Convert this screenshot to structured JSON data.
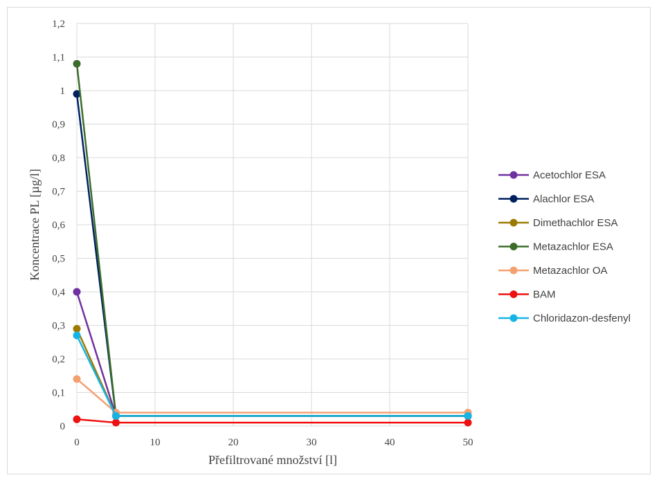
{
  "chart_data": {
    "type": "line",
    "title": "",
    "xlabel": "Přefiltrované množství [l]",
    "ylabel": "Koncentrace PL [µg/l]",
    "xlim": [
      0,
      50
    ],
    "ylim": [
      0,
      1.2
    ],
    "x_ticks": [
      "0",
      "10",
      "20",
      "30",
      "40",
      "50"
    ],
    "x_tick_values": [
      0,
      10,
      20,
      30,
      40,
      50
    ],
    "y_ticks": [
      "0",
      "0,1",
      "0,2",
      "0,3",
      "0,4",
      "0,5",
      "0,6",
      "0,7",
      "0,8",
      "0,9",
      "1",
      "1,1",
      "1,2"
    ],
    "y_tick_values": [
      0,
      0.1,
      0.2,
      0.3,
      0.4,
      0.5,
      0.6,
      0.7,
      0.8,
      0.9,
      1.0,
      1.1,
      1.2
    ],
    "grid": true,
    "legend_position": "right",
    "x": [
      0,
      5,
      50
    ],
    "series": [
      {
        "name": "Acetochlor ESA",
        "color": "#7030a0",
        "values": [
          0.4,
          0.03,
          0.03
        ]
      },
      {
        "name": "Alachlor ESA",
        "color": "#002060",
        "values": [
          0.99,
          0.03,
          0.03
        ]
      },
      {
        "name": "Dimethachlor ESA",
        "color": "#9c7a00",
        "values": [
          0.29,
          0.03,
          0.03
        ]
      },
      {
        "name": "Metazachlor ESA",
        "color": "#3a6e2a",
        "values": [
          1.08,
          0.03,
          0.03
        ]
      },
      {
        "name": "Metazachlor OA",
        "color": "#f4a070",
        "values": [
          0.14,
          0.04,
          0.04
        ]
      },
      {
        "name": "BAM",
        "color": "#ee1111",
        "values": [
          0.02,
          0.01,
          0.01
        ]
      },
      {
        "name": "Chloridazon-desfenyl",
        "color": "#16b4e6",
        "values": [
          0.27,
          0.03,
          0.03
        ]
      }
    ]
  }
}
